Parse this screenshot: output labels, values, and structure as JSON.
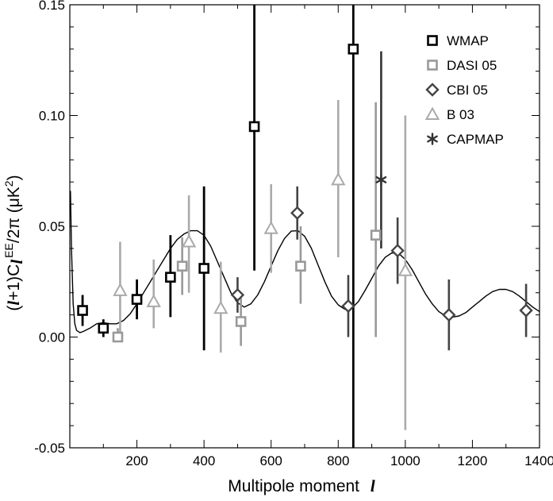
{
  "chart_data": {
    "type": "scatter",
    "xlabel_text": "Multipole moment",
    "xlabel_symbol": "l",
    "ylabel": "(l+1)Cl EE/2π (μK2)",
    "ylabel_parts": {
      "open": "(",
      "l": "l",
      "rest": "+1)C",
      "sub": "l",
      "sup_ee": "EE",
      "mid": "/2π (μK",
      "sup_2": "2",
      "close": ")"
    },
    "xlim": [
      0,
      1400
    ],
    "ylim": [
      -0.05,
      0.15
    ],
    "x_ticks": [
      200,
      400,
      600,
      800,
      1000,
      1200,
      1400
    ],
    "x_tick_labels": [
      "200",
      "400",
      "600",
      "800",
      "1000",
      "1200",
      "1400"
    ],
    "y_ticks": [
      -0.05,
      0.0,
      0.05,
      0.1,
      0.15
    ],
    "y_tick_labels": [
      "-0.05",
      "0.00",
      "0.05",
      "0.10",
      "0.15"
    ],
    "legend_position": "top-right",
    "colors": {
      "WMAP": "#000000",
      "DASI 05": "#999999",
      "CBI 05": "#444444",
      "B 03": "#aaaaaa",
      "CAPMAP": "#333333",
      "theory": "#000000"
    },
    "series": [
      {
        "name": "WMAP",
        "marker": "square",
        "points": [
          {
            "x": 38,
            "y": 0.012,
            "lo": 0.005,
            "hi": 0.019
          },
          {
            "x": 100,
            "y": 0.004,
            "lo": 0.0,
            "hi": 0.008
          },
          {
            "x": 200,
            "y": 0.017,
            "lo": 0.008,
            "hi": 0.026
          },
          {
            "x": 300,
            "y": 0.027,
            "lo": 0.009,
            "hi": 0.046
          },
          {
            "x": 400,
            "y": 0.031,
            "lo": -0.006,
            "hi": 0.068
          },
          {
            "x": 550,
            "y": 0.095,
            "lo": 0.03,
            "hi": 0.16
          },
          {
            "x": 845,
            "y": 0.13,
            "lo": -0.06,
            "hi": 0.16
          }
        ]
      },
      {
        "name": "DASI 05",
        "marker": "square",
        "points": [
          {
            "x": 143,
            "y": 0.0,
            "lo": -0.002,
            "hi": 0.004
          },
          {
            "x": 335,
            "y": 0.032,
            "lo": 0.019,
            "hi": 0.045
          },
          {
            "x": 510,
            "y": 0.007,
            "lo": -0.004,
            "hi": 0.018
          },
          {
            "x": 688,
            "y": 0.032,
            "lo": 0.015,
            "hi": 0.05
          },
          {
            "x": 912,
            "y": 0.046,
            "lo": 0.0,
            "hi": 0.106
          }
        ]
      },
      {
        "name": "CBI 05",
        "marker": "diamond",
        "points": [
          {
            "x": 500,
            "y": 0.019,
            "lo": 0.011,
            "hi": 0.027
          },
          {
            "x": 678,
            "y": 0.056,
            "lo": 0.044,
            "hi": 0.068
          },
          {
            "x": 830,
            "y": 0.014,
            "lo": 0.0,
            "hi": 0.028
          },
          {
            "x": 977,
            "y": 0.039,
            "lo": 0.024,
            "hi": 0.054
          },
          {
            "x": 1130,
            "y": 0.01,
            "lo": -0.006,
            "hi": 0.026
          },
          {
            "x": 1360,
            "y": 0.012,
            "lo": 0.0,
            "hi": 0.024
          }
        ]
      },
      {
        "name": "B 03",
        "marker": "triangle",
        "points": [
          {
            "x": 150,
            "y": 0.021,
            "lo": 0.0,
            "hi": 0.043
          },
          {
            "x": 250,
            "y": 0.016,
            "lo": 0.004,
            "hi": 0.035
          },
          {
            "x": 355,
            "y": 0.043,
            "lo": 0.02,
            "hi": 0.064
          },
          {
            "x": 450,
            "y": 0.013,
            "lo": -0.007,
            "hi": 0.034
          },
          {
            "x": 600,
            "y": 0.049,
            "lo": 0.029,
            "hi": 0.069
          },
          {
            "x": 800,
            "y": 0.071,
            "lo": 0.036,
            "hi": 0.107
          },
          {
            "x": 1000,
            "y": 0.03,
            "lo": -0.042,
            "hi": 0.1
          }
        ]
      },
      {
        "name": "CAPMAP",
        "marker": "asterisk",
        "points": [
          {
            "x": 928,
            "y": 0.071,
            "lo": 0.04,
            "hi": 0.129
          }
        ]
      }
    ],
    "theory_curve": {
      "x": [
        2,
        5,
        10,
        15,
        20,
        30,
        40,
        60,
        80,
        100,
        120,
        140,
        160,
        180,
        200,
        220,
        240,
        260,
        280,
        300,
        320,
        340,
        360,
        380,
        400,
        420,
        440,
        460,
        480,
        500,
        520,
        540,
        560,
        580,
        600,
        620,
        640,
        660,
        680,
        700,
        720,
        740,
        760,
        780,
        800,
        820,
        840,
        860,
        880,
        900,
        920,
        940,
        960,
        980,
        1000,
        1020,
        1040,
        1060,
        1080,
        1100,
        1120,
        1140,
        1160,
        1180,
        1200,
        1220,
        1240,
        1260,
        1280,
        1300,
        1320,
        1340,
        1360,
        1380,
        1400
      ],
      "y": [
        0.066,
        0.04,
        0.015,
        0.006,
        0.003,
        0.002,
        0.0025,
        0.004,
        0.006,
        0.0065,
        0.006,
        0.006,
        0.0075,
        0.0105,
        0.015,
        0.02,
        0.025,
        0.03,
        0.035,
        0.04,
        0.044,
        0.0465,
        0.048,
        0.048,
        0.046,
        0.041,
        0.034,
        0.027,
        0.02,
        0.0155,
        0.0135,
        0.015,
        0.019,
        0.025,
        0.032,
        0.039,
        0.0445,
        0.0478,
        0.048,
        0.0455,
        0.04,
        0.0325,
        0.025,
        0.0185,
        0.0145,
        0.0125,
        0.013,
        0.016,
        0.021,
        0.0265,
        0.032,
        0.036,
        0.038,
        0.0378,
        0.035,
        0.0305,
        0.025,
        0.0195,
        0.015,
        0.0115,
        0.0095,
        0.009,
        0.0095,
        0.011,
        0.0135,
        0.016,
        0.0185,
        0.0205,
        0.0215,
        0.0215,
        0.0205,
        0.0185,
        0.016,
        0.0135,
        0.0115
      ]
    }
  }
}
